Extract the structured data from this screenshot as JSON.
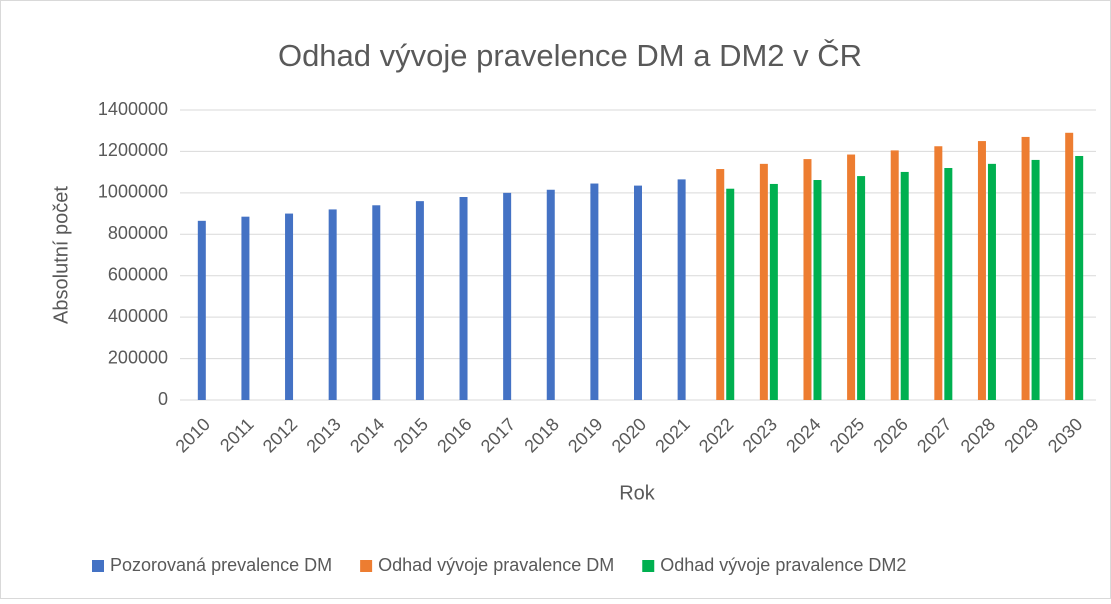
{
  "chart_data": {
    "type": "bar",
    "title": "Odhad vývoje pravelence DM a DM2 v ČR",
    "x_label": "Rok",
    "y_label": "Absolutní počet",
    "categories": [
      "2010",
      "2011",
      "2012",
      "2013",
      "2014",
      "2015",
      "2016",
      "2017",
      "2018",
      "2019",
      "2020",
      "2021",
      "2022",
      "2023",
      "2024",
      "2025",
      "2026",
      "2027",
      "2028",
      "2029",
      "2030"
    ],
    "series": [
      {
        "name": "Pozorovaná prevalence DM",
        "color": "#4472c4",
        "values": [
          865000,
          885000,
          900000,
          920000,
          940000,
          960000,
          980000,
          1000000,
          1015000,
          1045000,
          1035000,
          1065000,
          null,
          null,
          null,
          null,
          null,
          null,
          null,
          null,
          null
        ]
      },
      {
        "name": "Odhad vývoje pravalence DM",
        "color": "#ed7d31",
        "values": [
          null,
          null,
          null,
          null,
          null,
          null,
          null,
          null,
          null,
          null,
          null,
          null,
          1115000,
          1140000,
          1163000,
          1185000,
          1205000,
          1225000,
          1250000,
          1270000,
          1290000
        ]
      },
      {
        "name": "Odhad vývoje pravalence DM2",
        "color": "#00b050",
        "values": [
          null,
          null,
          null,
          null,
          null,
          null,
          null,
          null,
          null,
          null,
          null,
          null,
          1020000,
          1043000,
          1062000,
          1081000,
          1101000,
          1120000,
          1140000,
          1159000,
          1178000
        ]
      }
    ],
    "ylim": [
      0,
      1400000
    ],
    "yticks": [
      0,
      200000,
      400000,
      600000,
      800000,
      1000000,
      1200000,
      1400000
    ],
    "grid": true,
    "legend": "bottom"
  }
}
